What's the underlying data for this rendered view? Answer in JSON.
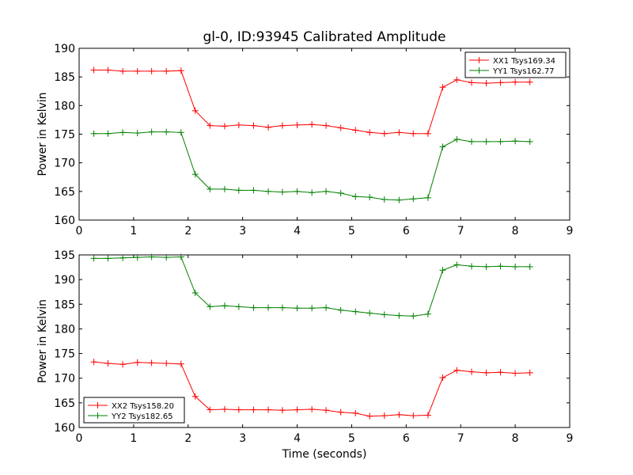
{
  "chart_data": {
    "title": "gl-0, ID:93945 Calibrated Amplitude",
    "panels": [
      {
        "type": "line",
        "ylabel": "Power in Kelvin",
        "xlabel": "",
        "xlim": [
          0,
          9
        ],
        "ylim": [
          160,
          190
        ],
        "xticks": [
          0,
          1,
          2,
          3,
          4,
          5,
          6,
          7,
          8,
          9
        ],
        "yticks": [
          160,
          165,
          170,
          175,
          180,
          185,
          190
        ],
        "legend_loc": "top-right",
        "x": [
          0.27,
          0.53,
          0.8,
          1.07,
          1.33,
          1.6,
          1.87,
          2.13,
          2.4,
          2.67,
          2.93,
          3.2,
          3.47,
          3.73,
          4.0,
          4.27,
          4.53,
          4.8,
          5.07,
          5.33,
          5.6,
          5.87,
          6.13,
          6.4,
          6.67,
          6.93,
          7.2,
          7.47,
          7.73,
          8.0,
          8.27
        ],
        "series": [
          {
            "name": "XX1 Tsys169.34",
            "color": "#ff0000",
            "values": [
              186.2,
              186.2,
              186.0,
              186.0,
              186.0,
              186.0,
              186.1,
              179.1,
              176.5,
              176.4,
              176.6,
              176.5,
              176.2,
              176.5,
              176.6,
              176.7,
              176.5,
              176.1,
              175.7,
              175.3,
              175.1,
              175.3,
              175.1,
              175.1,
              183.2,
              184.5,
              184.0,
              183.9,
              184.0,
              184.1,
              184.1
            ]
          },
          {
            "name": "YY1 Tsys162.77",
            "color": "#008000",
            "values": [
              175.1,
              175.1,
              175.3,
              175.2,
              175.4,
              175.4,
              175.3,
              168.0,
              165.4,
              165.4,
              165.2,
              165.2,
              165.0,
              164.9,
              165.0,
              164.8,
              165.0,
              164.7,
              164.1,
              164.0,
              163.6,
              163.5,
              163.7,
              163.9,
              172.8,
              174.1,
              173.7,
              173.7,
              173.7,
              173.8,
              173.7
            ]
          }
        ]
      },
      {
        "type": "line",
        "ylabel": "Power in Kelvin",
        "xlabel": "Time (seconds)",
        "xlim": [
          0,
          9
        ],
        "ylim": [
          160,
          195
        ],
        "xticks": [
          0,
          1,
          2,
          3,
          4,
          5,
          6,
          7,
          8,
          9
        ],
        "yticks": [
          160,
          165,
          170,
          175,
          180,
          185,
          190,
          195
        ],
        "legend_loc": "bottom-left",
        "x": [
          0.27,
          0.53,
          0.8,
          1.07,
          1.33,
          1.6,
          1.87,
          2.13,
          2.4,
          2.67,
          2.93,
          3.2,
          3.47,
          3.73,
          4.0,
          4.27,
          4.53,
          4.8,
          5.07,
          5.33,
          5.6,
          5.87,
          6.13,
          6.4,
          6.67,
          6.93,
          7.2,
          7.47,
          7.73,
          8.0,
          8.27
        ],
        "series": [
          {
            "name": "XX2 Tsys158.20",
            "color": "#ff0000",
            "values": [
              173.3,
              173.0,
              172.8,
              173.2,
              173.1,
              173.0,
              172.9,
              166.3,
              163.6,
              163.7,
              163.6,
              163.6,
              163.6,
              163.5,
              163.6,
              163.7,
              163.5,
              163.1,
              162.9,
              162.3,
              162.4,
              162.6,
              162.4,
              162.5,
              170.1,
              171.6,
              171.3,
              171.1,
              171.2,
              171.0,
              171.1
            ]
          },
          {
            "name": "YY2 Tsys182.65",
            "color": "#008000",
            "values": [
              194.3,
              194.3,
              194.4,
              194.5,
              194.6,
              194.5,
              194.6,
              187.3,
              184.5,
              184.7,
              184.5,
              184.3,
              184.3,
              184.3,
              184.2,
              184.2,
              184.3,
              183.8,
              183.5,
              183.2,
              182.9,
              182.7,
              182.6,
              183.0,
              191.9,
              193.0,
              192.7,
              192.6,
              192.7,
              192.6,
              192.6
            ]
          }
        ]
      }
    ]
  }
}
